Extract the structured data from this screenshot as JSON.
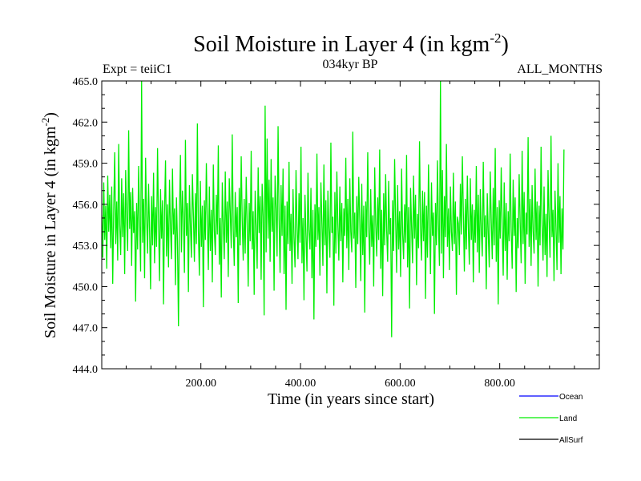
{
  "chart_data": {
    "type": "line",
    "title": "Soil Moisture in Layer 4 (in kgm",
    "title_superscript": "-2",
    "title_suffix": ")",
    "subtitle_left": "Expt = teiiC1",
    "subtitle_center": "034kyr BP",
    "subtitle_right": "ALL_MONTHS",
    "xlabel": "Time (in years since start)",
    "ylabel": "Soil Moisture in Layer 4 (in kgm",
    "ylabel_superscript": "-2",
    "ylabel_suffix": ")",
    "xlim": [
      1,
      1000
    ],
    "ylim": [
      444.0,
      465.0
    ],
    "xticks": [
      "200.00",
      "400.00",
      "600.00",
      "800.00"
    ],
    "xtick_values": [
      200,
      400,
      600,
      800
    ],
    "yticks": [
      "444.0",
      "447.0",
      "450.0",
      "453.0",
      "456.0",
      "459.0",
      "462.0",
      "465.0"
    ],
    "ytick_values": [
      444,
      447,
      450,
      453,
      456,
      459,
      462,
      465
    ],
    "grid": false,
    "legend_position": "bottom-right",
    "series": [
      {
        "name": "Land",
        "color": "#00ee00",
        "x_start": 1,
        "x_step": 2,
        "values": [
          455.2,
          452.1,
          457.6,
          453.4,
          455.9,
          451.3,
          458.1,
          454.0,
          456.7,
          452.8,
          457.3,
          450.2,
          455.6,
          459.8,
          453.1,
          456.2,
          451.9,
          460.4,
          454.5,
          452.3,
          457.9,
          453.6,
          456.8,
          450.9,
          458.5,
          455.0,
          452.6,
          461.4,
          454.2,
          456.9,
          451.5,
          457.2,
          453.9,
          455.5,
          448.9,
          456.1,
          452.7,
          458.8,
          454.8,
          451.1,
          465.0,
          453.2,
          456.4,
          450.6,
          459.4,
          455.1,
          452.4,
          457.5,
          454.1,
          449.8,
          456.6,
          453.0,
          458.3,
          451.7,
          455.8,
          452.9,
          460.1,
          454.6,
          450.4,
          457.1,
          453.5,
          456.3,
          448.7,
          455.4,
          459.2,
          452.2,
          456.0,
          451.4,
          457.8,
          454.3,
          452.0,
          458.6,
          453.8,
          455.7,
          450.1,
          456.5,
          453.3,
          447.1,
          455.3,
          459.6,
          452.5,
          457.0,
          454.9,
          451.0,
          460.7,
          453.7,
          456.1,
          449.6,
          457.4,
          454.4,
          452.1,
          458.2,
          455.2,
          451.8,
          456.8,
          453.1,
          461.9,
          454.0,
          450.8,
          457.7,
          452.9,
          455.9,
          448.5,
          456.3,
          453.4,
          459.0,
          454.7,
          451.2,
          457.3,
          452.6,
          455.6,
          450.3,
          458.9,
          454.1,
          452.3,
          456.7,
          453.8,
          460.3,
          451.6,
          455.0,
          449.2,
          457.6,
          454.5,
          452.0,
          458.4,
          453.2,
          456.2,
          450.7,
          457.9,
          455.4,
          452.8,
          461.1,
          454.2,
          451.5,
          456.9,
          453.6,
          455.8,
          448.8,
          457.2,
          453.0,
          459.5,
          454.8,
          451.9,
          456.4,
          452.4,
          458.0,
          454.6,
          450.0,
          456.1,
          453.3,
          459.9,
          452.7,
          455.5,
          449.4,
          457.0,
          454.3,
          451.3,
          458.7,
          453.9,
          456.6,
          450.5,
          457.5,
          455.1,
          447.9,
          463.2,
          452.5,
          460.8,
          453.5,
          457.8,
          451.8,
          459.3,
          454.0,
          456.5,
          449.7,
          458.1,
          455.7,
          452.2,
          461.7,
          454.9,
          451.0,
          457.4,
          453.7,
          458.6,
          450.9,
          455.9,
          448.3,
          456.2,
          453.1,
          459.1,
          452.6,
          455.3,
          450.2,
          457.1,
          453.6,
          451.4,
          458.5,
          454.4,
          452.0,
          456.8,
          453.2,
          460.2,
          451.7,
          455.0,
          449.0,
          456.7,
          453.8,
          451.1,
          458.3,
          454.1,
          452.7,
          457.2,
          450.6,
          455.6,
          447.6,
          456.0,
          452.9,
          459.7,
          453.4,
          455.8,
          450.8,
          457.6,
          454.7,
          451.5,
          458.9,
          453.0,
          456.3,
          449.5,
          457.0,
          454.2,
          452.1,
          460.5,
          453.9,
          455.1,
          448.6,
          456.9,
          452.4,
          458.4,
          454.5,
          451.9,
          457.3,
          453.3,
          456.1,
          450.3,
          455.7,
          453.7,
          459.4,
          452.8,
          456.4,
          451.2,
          457.9,
          454.0,
          452.5,
          461.3,
          453.5,
          455.4,
          449.9,
          456.6,
          453.1,
          458.0,
          454.8,
          450.4,
          457.5,
          452.3,
          455.9,
          448.1,
          456.2,
          453.6,
          459.8,
          454.3,
          451.6,
          457.1,
          452.9,
          455.2,
          450.0,
          458.7,
          454.6,
          452.2,
          456.5,
          453.4,
          460.0,
          451.3,
          455.6,
          449.3,
          456.8,
          453.0,
          458.2,
          454.1,
          451.8,
          457.7,
          453.8,
          455.0,
          446.3,
          456.3,
          452.6,
          459.3,
          454.9,
          451.0,
          457.4,
          452.7,
          455.5,
          450.7,
          458.6,
          453.9,
          452.0,
          456.0,
          453.2,
          459.6,
          451.4,
          455.8,
          448.4,
          457.2,
          454.4,
          451.7,
          458.1,
          453.5,
          456.7,
          450.1,
          455.3,
          452.8,
          460.6,
          454.2,
          451.9,
          457.0,
          453.3,
          456.9,
          449.1,
          455.9,
          452.1,
          458.9,
          454.7,
          450.9,
          457.6,
          453.7,
          455.4,
          448.0,
          456.1,
          453.0,
          459.2,
          454.5,
          451.5,
          465.0,
          452.4,
          458.5,
          450.6,
          456.6,
          453.6,
          460.4,
          452.9,
          455.7,
          451.2,
          457.3,
          454.0,
          452.6,
          458.3,
          453.1,
          456.2,
          449.4,
          455.1,
          454.6,
          452.3,
          457.5,
          453.8,
          459.5,
          455.3,
          451.1,
          456.4,
          452.7,
          458.1,
          454.3,
          451.6,
          457.9,
          453.4,
          456.0,
          450.3,
          455.6,
          453.2,
          458.8,
          452.5,
          456.7,
          451.0,
          457.1,
          454.1,
          452.2,
          459.1,
          453.6,
          455.2,
          449.8,
          456.8,
          453.9,
          451.4,
          458.4,
          454.8,
          452.0,
          457.2,
          453.0,
          460.1,
          451.8,
          455.8,
          448.7,
          456.3,
          453.5,
          458.7,
          454.4,
          450.8,
          457.6,
          452.6,
          456.1,
          450.5,
          455.5,
          453.3,
          459.7,
          454.2,
          451.3,
          457.8,
          453.7,
          456.5,
          449.6,
          455.0,
          452.8,
          458.2,
          454.7,
          451.7,
          459.9,
          453.1,
          456.9,
          450.2,
          455.4,
          453.8,
          460.9,
          452.9,
          456.4,
          451.5,
          457.4,
          454.0,
          452.4,
          458.6,
          453.4,
          456.2,
          450.0,
          455.9,
          453.0,
          460.2,
          454.5,
          451.9,
          457.3,
          452.3,
          455.3,
          450.7,
          458.5,
          454.9,
          452.1,
          461.0,
          453.6,
          455.6,
          450.4,
          457.0,
          454.3,
          451.2,
          459.0,
          453.2,
          456.6,
          450.9,
          455.7,
          452.7,
          460.0
        ]
      },
      {
        "name": "Ocean",
        "color": "#0000ff",
        "values": []
      },
      {
        "name": "AllSurf",
        "color": "#000000",
        "values": []
      }
    ]
  }
}
